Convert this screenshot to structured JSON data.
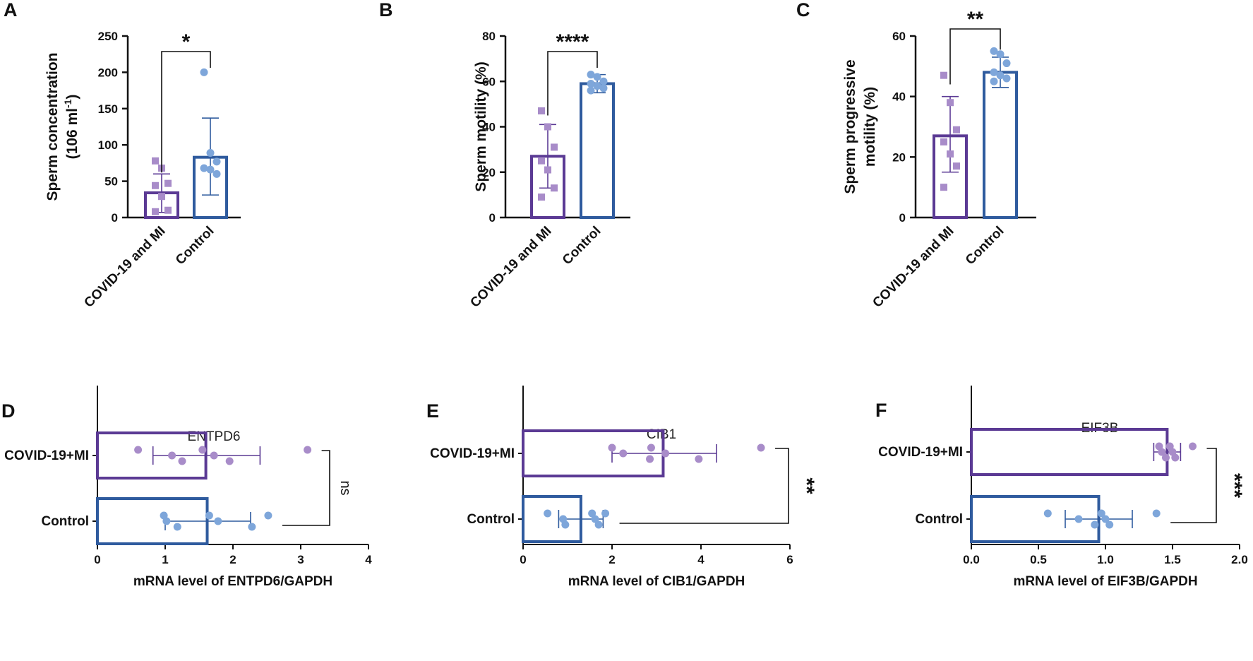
{
  "colors": {
    "purple": "#5b3a94",
    "purple_point": "#a88cc9",
    "blue": "#2f5b9e",
    "blue_point": "#7ea6da",
    "axis": "#111111"
  },
  "chart_data": [
    {
      "id": "A",
      "panel": "A",
      "type": "bar",
      "orientation": "vertical",
      "ylabel_lines": [
        "Sperm concentration",
        "(106 ml",
        "-1",
        ")"
      ],
      "ylim": [
        0,
        250
      ],
      "yticks": [
        0,
        50,
        100,
        150,
        200,
        250
      ],
      "categories": [
        "COVID-19 and MI",
        "Control"
      ],
      "series": [
        {
          "name": "COVID-19 and MI",
          "mean": 34,
          "error": [
            7,
            60
          ],
          "points": [
            78,
            68,
            47,
            44,
            29,
            10,
            8
          ],
          "marker": "square"
        },
        {
          "name": "Control",
          "mean": 83,
          "error": [
            31,
            137
          ],
          "points": [
            200,
            89,
            77,
            68,
            66,
            60
          ],
          "marker": "circle"
        }
      ],
      "significance": "*"
    },
    {
      "id": "B",
      "panel": "B",
      "type": "bar",
      "orientation": "vertical",
      "ylabel_lines": [
        "Sperm motility (%)"
      ],
      "ylim": [
        0,
        80
      ],
      "yticks": [
        0,
        20,
        40,
        60,
        80
      ],
      "categories": [
        "COVID-19 and MI",
        "Control"
      ],
      "series": [
        {
          "name": "COVID-19 and MI",
          "mean": 27,
          "error": [
            13,
            41
          ],
          "points": [
            47,
            40,
            31,
            25,
            21,
            13,
            9
          ],
          "marker": "square"
        },
        {
          "name": "Control",
          "mean": 59,
          "error": [
            55,
            63
          ],
          "points": [
            63,
            62,
            60,
            59,
            58,
            57,
            56
          ],
          "marker": "circle"
        }
      ],
      "significance": "****"
    },
    {
      "id": "C",
      "panel": "C",
      "type": "bar",
      "orientation": "vertical",
      "ylabel_lines": [
        "Sperm progressive",
        "motility (%)"
      ],
      "ylim": [
        0,
        60
      ],
      "yticks": [
        0,
        20,
        40,
        60
      ],
      "categories": [
        "COVID-19 and MI",
        "Control"
      ],
      "series": [
        {
          "name": "COVID-19 and MI",
          "mean": 27,
          "error": [
            15,
            40
          ],
          "points": [
            47,
            38,
            29,
            25,
            21,
            17,
            10
          ],
          "marker": "square"
        },
        {
          "name": "Control",
          "mean": 48,
          "error": [
            43,
            53
          ],
          "points": [
            55,
            54,
            51,
            48,
            47,
            46,
            45
          ],
          "marker": "circle"
        }
      ],
      "significance": "**"
    },
    {
      "id": "D",
      "panel": "D",
      "type": "bar",
      "orientation": "horizontal",
      "title": "ENTPD6",
      "xlabel": "mRNA level of ENTPD6/GAPDH",
      "xlim": [
        0,
        4
      ],
      "xticks": [
        0,
        1,
        2,
        3,
        4
      ],
      "categories": [
        "COVID-19+MI",
        "Control"
      ],
      "series": [
        {
          "name": "COVID-19+MI",
          "mean": 1.6,
          "error": [
            0.82,
            2.4
          ],
          "points": [
            0.6,
            1.1,
            1.25,
            1.55,
            1.72,
            1.95,
            3.1
          ]
        },
        {
          "name": "Control",
          "mean": 1.62,
          "error": [
            1.0,
            2.26
          ],
          "points": [
            0.98,
            1.02,
            1.18,
            1.65,
            1.78,
            2.28,
            2.52
          ]
        }
      ],
      "significance": "ns"
    },
    {
      "id": "E",
      "panel": "E",
      "type": "bar",
      "orientation": "horizontal",
      "title": "CIB1",
      "xlabel": "mRNA level of CIB1/GAPDH",
      "xlim": [
        0,
        6
      ],
      "xticks": [
        0,
        2,
        4,
        6
      ],
      "categories": [
        "COVID-19+MI",
        "Control"
      ],
      "series": [
        {
          "name": "COVID-19+MI",
          "mean": 3.15,
          "error": [
            2.0,
            4.35
          ],
          "points": [
            2.0,
            2.25,
            2.85,
            2.88,
            3.2,
            3.95,
            5.35
          ]
        },
        {
          "name": "Control",
          "mean": 1.3,
          "error": [
            0.8,
            1.8
          ],
          "points": [
            0.55,
            0.9,
            0.95,
            1.55,
            1.62,
            1.7,
            1.85
          ]
        }
      ],
      "significance": "**"
    },
    {
      "id": "F",
      "panel": "F",
      "type": "bar",
      "orientation": "horizontal",
      "title": "EIF3B",
      "xlabel": "mRNA level of EIF3B/GAPDH",
      "xlim": [
        0,
        2.0
      ],
      "xticks": [
        0.0,
        0.5,
        1.0,
        1.5,
        2.0
      ],
      "categories": [
        "COVID-19+MI",
        "Control"
      ],
      "series": [
        {
          "name": "COVID-19+MI",
          "mean": 1.46,
          "error": [
            1.36,
            1.56
          ],
          "points": [
            1.4,
            1.42,
            1.45,
            1.48,
            1.5,
            1.52,
            1.65
          ]
        },
        {
          "name": "Control",
          "mean": 0.95,
          "error": [
            0.7,
            1.2
          ],
          "points": [
            0.57,
            0.8,
            0.92,
            0.97,
            1.0,
            1.03,
            1.38
          ]
        }
      ],
      "significance": "***"
    }
  ]
}
